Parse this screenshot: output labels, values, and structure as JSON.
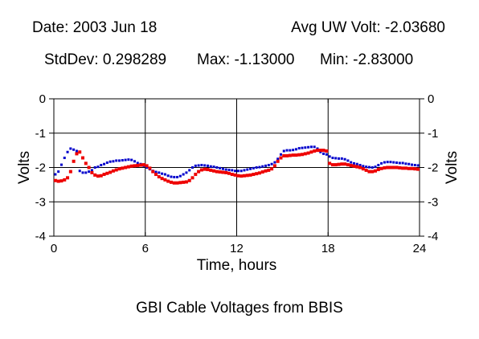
{
  "header": {
    "date": "Date: 2003 Jun 18",
    "avg": "Avg UW Volt: -2.03680",
    "stddev": "StdDev: 0.298289",
    "max": "Max: -1.13000",
    "min": "Min: -2.83000"
  },
  "chart_data": {
    "type": "scatter",
    "title": "GBI Cable Voltages from BBIS",
    "xlabel": "Time, hours",
    "ylabel": "Volts",
    "ylabel_right": "Volts",
    "xlim": [
      0,
      24
    ],
    "ylim": [
      -4,
      0
    ],
    "xticks": [
      0,
      6,
      12,
      18,
      24
    ],
    "xtick_labels": [
      "0",
      "6",
      "12",
      "18",
      "24"
    ],
    "yticks": [
      0,
      -1,
      -2,
      -3,
      -4
    ],
    "ytick_labels": [
      "0",
      "-1",
      "-2",
      "-3",
      "-4"
    ],
    "grid": true,
    "series": [
      {
        "color": "#0000cc",
        "x": [
          0.1,
          0.3,
          0.5,
          0.7,
          0.9,
          1.1,
          1.3,
          1.5,
          1.7,
          1.9,
          2.1,
          2.3,
          2.5,
          2.7,
          2.9,
          3.1,
          3.3,
          3.5,
          3.7,
          3.9,
          4.1,
          4.3,
          4.5,
          4.7,
          4.9,
          5.1,
          5.3,
          5.5,
          5.7,
          5.9,
          6.1,
          6.3,
          6.5,
          6.7,
          6.9,
          7.1,
          7.3,
          7.5,
          7.7,
          7.9,
          8.1,
          8.3,
          8.5,
          8.7,
          8.9,
          9.1,
          9.3,
          9.5,
          9.7,
          9.9,
          10.1,
          10.3,
          10.5,
          10.7,
          10.9,
          11.1,
          11.3,
          11.5,
          11.7,
          11.9,
          12.1,
          12.3,
          12.5,
          12.7,
          12.9,
          13.1,
          13.3,
          13.5,
          13.7,
          13.9,
          14.1,
          14.3,
          14.5,
          14.7,
          14.9,
          15.1,
          15.3,
          15.5,
          15.7,
          15.9,
          16.1,
          16.3,
          16.5,
          16.7,
          16.9,
          17.1,
          17.3,
          17.5,
          17.7,
          17.9,
          18.1,
          18.3,
          18.5,
          18.7,
          18.9,
          19.1,
          19.3,
          19.5,
          19.7,
          19.9,
          20.1,
          20.3,
          20.5,
          20.7,
          20.9,
          21.1,
          21.3,
          21.5,
          21.7,
          21.9,
          22.1,
          22.3,
          22.5,
          22.7,
          22.9,
          23.1,
          23.3,
          23.5,
          23.7,
          23.9
        ],
        "y": [
          -2.2,
          -2.12,
          -1.92,
          -1.72,
          -1.55,
          -1.45,
          -1.48,
          -1.52,
          -2.1,
          -2.15,
          -2.15,
          -2.12,
          -2.08,
          -2.0,
          -1.98,
          -1.93,
          -1.9,
          -1.86,
          -1.83,
          -1.82,
          -1.8,
          -1.8,
          -1.79,
          -1.78,
          -1.77,
          -1.78,
          -1.82,
          -1.87,
          -1.9,
          -1.95,
          -2.0,
          -2.05,
          -2.1,
          -2.13,
          -2.15,
          -2.18,
          -2.2,
          -2.24,
          -2.27,
          -2.28,
          -2.28,
          -2.25,
          -2.2,
          -2.15,
          -2.08,
          -2.0,
          -1.95,
          -1.94,
          -1.93,
          -1.94,
          -1.95,
          -1.97,
          -1.98,
          -2.0,
          -2.02,
          -2.04,
          -2.06,
          -2.07,
          -2.08,
          -2.1,
          -2.1,
          -2.1,
          -2.08,
          -2.06,
          -2.04,
          -2.02,
          -2.0,
          -1.99,
          -1.97,
          -1.95,
          -1.93,
          -1.9,
          -1.85,
          -1.75,
          -1.62,
          -1.52,
          -1.5,
          -1.5,
          -1.49,
          -1.47,
          -1.44,
          -1.43,
          -1.42,
          -1.41,
          -1.4,
          -1.4,
          -1.45,
          -1.55,
          -1.6,
          -1.62,
          -1.68,
          -1.72,
          -1.73,
          -1.74,
          -1.74,
          -1.76,
          -1.8,
          -1.85,
          -1.88,
          -1.9,
          -1.93,
          -1.96,
          -1.98,
          -1.99,
          -2.0,
          -1.98,
          -1.93,
          -1.88,
          -1.85,
          -1.84,
          -1.84,
          -1.85,
          -1.86,
          -1.87,
          -1.87,
          -1.89,
          -1.9,
          -1.92,
          -1.93,
          -1.94
        ]
      },
      {
        "color": "#ee0000",
        "x": [
          0.1,
          0.3,
          0.5,
          0.7,
          0.9,
          1.1,
          1.3,
          1.5,
          1.7,
          1.9,
          2.1,
          2.3,
          2.5,
          2.7,
          2.9,
          3.1,
          3.3,
          3.5,
          3.7,
          3.9,
          4.1,
          4.3,
          4.5,
          4.7,
          4.9,
          5.1,
          5.3,
          5.5,
          5.7,
          5.9,
          6.1,
          6.3,
          6.5,
          6.7,
          6.9,
          7.1,
          7.3,
          7.5,
          7.7,
          7.9,
          8.1,
          8.3,
          8.5,
          8.7,
          8.9,
          9.1,
          9.3,
          9.5,
          9.7,
          9.9,
          10.1,
          10.3,
          10.5,
          10.7,
          10.9,
          11.1,
          11.3,
          11.5,
          11.7,
          11.9,
          12.1,
          12.3,
          12.5,
          12.7,
          12.9,
          13.1,
          13.3,
          13.5,
          13.7,
          13.9,
          14.1,
          14.3,
          14.5,
          14.7,
          14.9,
          15.1,
          15.3,
          15.5,
          15.7,
          15.9,
          16.1,
          16.3,
          16.5,
          16.7,
          16.9,
          17.1,
          17.3,
          17.5,
          17.7,
          17.9,
          18.1,
          18.3,
          18.5,
          18.7,
          18.9,
          19.1,
          19.3,
          19.5,
          19.7,
          19.9,
          20.1,
          20.3,
          20.5,
          20.7,
          20.9,
          21.1,
          21.3,
          21.5,
          21.7,
          21.9,
          22.1,
          22.3,
          22.5,
          22.7,
          22.9,
          23.1,
          23.3,
          23.5,
          23.7,
          23.9
        ],
        "y": [
          -2.38,
          -2.4,
          -2.39,
          -2.36,
          -2.3,
          -2.12,
          -1.82,
          -1.6,
          -1.55,
          -1.72,
          -1.88,
          -2.0,
          -2.15,
          -2.22,
          -2.25,
          -2.24,
          -2.2,
          -2.17,
          -2.14,
          -2.1,
          -2.07,
          -2.04,
          -2.02,
          -2.0,
          -1.98,
          -1.96,
          -1.95,
          -1.94,
          -1.93,
          -1.92,
          -1.95,
          -2.02,
          -2.12,
          -2.2,
          -2.27,
          -2.32,
          -2.36,
          -2.4,
          -2.43,
          -2.45,
          -2.45,
          -2.44,
          -2.43,
          -2.42,
          -2.38,
          -2.3,
          -2.2,
          -2.12,
          -2.07,
          -2.05,
          -2.06,
          -2.08,
          -2.1,
          -2.12,
          -2.13,
          -2.14,
          -2.15,
          -2.17,
          -2.2,
          -2.22,
          -2.24,
          -2.25,
          -2.24,
          -2.23,
          -2.22,
          -2.2,
          -2.18,
          -2.16,
          -2.13,
          -2.1,
          -2.08,
          -2.04,
          -1.95,
          -1.82,
          -1.72,
          -1.66,
          -1.66,
          -1.65,
          -1.64,
          -1.64,
          -1.63,
          -1.62,
          -1.6,
          -1.58,
          -1.55,
          -1.52,
          -1.5,
          -1.5,
          -1.5,
          -1.52,
          -1.88,
          -1.92,
          -1.92,
          -1.91,
          -1.9,
          -1.9,
          -1.92,
          -1.94,
          -1.96,
          -1.98,
          -2.0,
          -2.04,
          -2.08,
          -2.12,
          -2.12,
          -2.1,
          -2.06,
          -2.03,
          -2.01,
          -2.0,
          -2.0,
          -2.0,
          -2.0,
          -2.01,
          -2.02,
          -2.02,
          -2.03,
          -2.03,
          -2.04,
          -2.05
        ]
      }
    ]
  }
}
